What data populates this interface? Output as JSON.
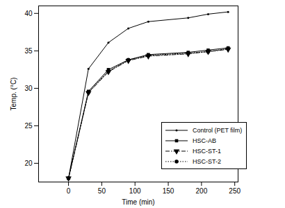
{
  "chart_data": {
    "type": "line",
    "x_label": "Time (min)",
    "y_label": "Temp. (°C)",
    "x": [
      0,
      30,
      60,
      90,
      120,
      180,
      210,
      240
    ],
    "series": [
      {
        "name": "Control (PET film)",
        "color": "#000000",
        "marker": "point",
        "line_style": "solid",
        "values": [
          18,
          32.6,
          36.1,
          38.0,
          38.9,
          39.4,
          39.9,
          40.2
        ]
      },
      {
        "name": "HSC-AB",
        "color": "#000000",
        "marker": "square",
        "line_style": "solid",
        "values": [
          18,
          29.6,
          32.5,
          33.8,
          34.5,
          34.8,
          35.1,
          35.4
        ]
      },
      {
        "name": "HSC-ST-1",
        "color": "#000000",
        "marker": "triangle-down",
        "line_style": "dashdot",
        "values": [
          18,
          29.4,
          32.2,
          33.7,
          34.3,
          34.6,
          34.9,
          35.2
        ]
      },
      {
        "name": "HSC-ST-2",
        "color": "#000000",
        "marker": "circle",
        "line_style": "dotted",
        "values": [
          18,
          29.5,
          32.3,
          33.8,
          34.4,
          34.7,
          34.9,
          35.3
        ]
      }
    ],
    "xlim": [
      -45,
      255
    ],
    "xticks": [
      0,
      50,
      100,
      150,
      200,
      250
    ],
    "ylim": [
      17.5,
      41
    ],
    "yticks": [
      20,
      25,
      30,
      35,
      40
    ],
    "grid": false,
    "legend": "right"
  }
}
